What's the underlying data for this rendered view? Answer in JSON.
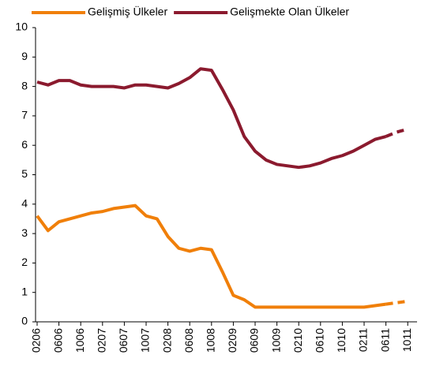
{
  "chart_data": {
    "type": "line",
    "categories": [
      "0206",
      null,
      "0606",
      null,
      "1006",
      null,
      "0207",
      null,
      "0607",
      null,
      "1007",
      null,
      "0208",
      null,
      "0608",
      null,
      "1008",
      null,
      "0209",
      null,
      "0609",
      null,
      "1009",
      null,
      "0210",
      null,
      "0610",
      null,
      "1010",
      null,
      "0211",
      null,
      "0611",
      null,
      "1011"
    ],
    "series": [
      {
        "name": "Gelişmiş Ülkeler",
        "color": "#f07f09",
        "values": [
          3.6,
          3.1,
          3.4,
          3.5,
          3.6,
          3.7,
          3.75,
          3.85,
          3.9,
          3.95,
          3.6,
          3.5,
          2.9,
          2.5,
          2.4,
          2.5,
          2.45,
          1.7,
          0.9,
          0.75,
          0.5,
          0.5,
          0.5,
          0.5,
          0.5,
          0.5,
          0.5,
          0.5,
          0.5,
          0.5,
          0.5,
          0.55,
          0.6,
          0.65,
          0.7
        ]
      },
      {
        "name": "Gelişmekte Olan Ülkeler",
        "color": "#8b1a2e",
        "values": [
          8.15,
          8.05,
          8.2,
          8.2,
          8.05,
          8.0,
          8.0,
          8.0,
          7.95,
          8.05,
          8.05,
          8.0,
          7.95,
          8.1,
          8.3,
          8.6,
          8.55,
          7.9,
          7.2,
          6.3,
          5.8,
          5.5,
          5.35,
          5.3,
          5.25,
          5.3,
          5.4,
          5.55,
          5.65,
          5.8,
          6.0,
          6.2,
          6.3,
          6.45,
          6.55
        ]
      }
    ],
    "dash_start": 32,
    "ylim": [
      0,
      10
    ],
    "yticks": [
      0,
      1,
      2,
      3,
      4,
      5,
      6,
      7,
      8,
      9,
      10
    ],
    "grid": false,
    "legend": "top"
  }
}
